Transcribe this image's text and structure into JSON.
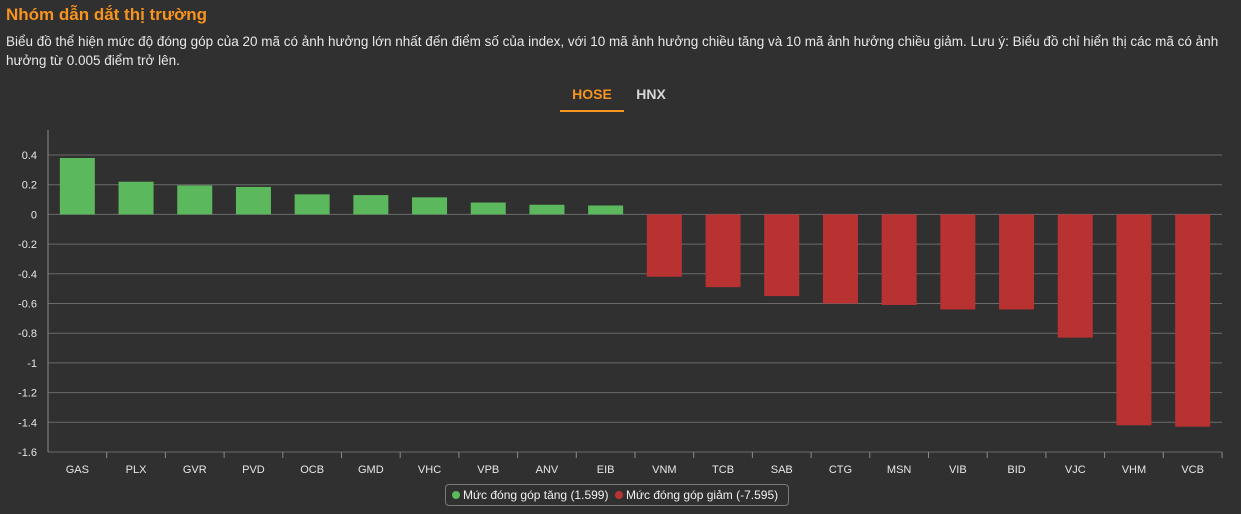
{
  "header": {
    "title": "Nhóm dẫn dắt thị trường",
    "description": "Biểu đồ thể hiện mức độ đóng góp của 20 mã có ảnh hưởng lớn nhất đến điểm số của index, với 10 mã ảnh hưởng chiều tăng và 10 mã ảnh hưởng chiều giảm. Lưu ý: Biểu đồ chỉ hiển thị các mã có ảnh hưởng từ 0.005 điểm trở lên."
  },
  "tabs": [
    {
      "label": "HOSE",
      "active": true
    },
    {
      "label": "HNX",
      "active": false
    }
  ],
  "colors": {
    "accent": "#f7931e",
    "increase": "#5cb85c",
    "decrease": "#b83232",
    "grid": "#6a6a6a"
  },
  "chart_data": {
    "type": "bar",
    "categories": [
      "GAS",
      "PLX",
      "GVR",
      "PVD",
      "OCB",
      "GMD",
      "VHC",
      "VPB",
      "ANV",
      "EIB",
      "VNM",
      "TCB",
      "SAB",
      "CTG",
      "MSN",
      "VIB",
      "BID",
      "VJC",
      "VHM",
      "VCB"
    ],
    "values": [
      0.38,
      0.22,
      0.195,
      0.185,
      0.135,
      0.13,
      0.115,
      0.08,
      0.065,
      0.06,
      -0.42,
      -0.49,
      -0.55,
      -0.6,
      -0.61,
      -0.64,
      -0.64,
      -0.83,
      -1.42,
      -1.43
    ],
    "ylim": [
      -1.6,
      0.5
    ],
    "yticks": [
      0.4,
      0.2,
      0,
      -0.2,
      -0.4,
      -0.6,
      -0.8,
      -1,
      -1.2,
      -1.4,
      -1.6
    ],
    "ytick_labels": [
      "0.4",
      "0.2",
      "0",
      "-0.2",
      "-0.4",
      "-0.6",
      "-0.8",
      "-1",
      "-1.2",
      "-1.4",
      "-1.6"
    ],
    "grid": true,
    "legend_position": "bottom-center",
    "legend": [
      {
        "label": "Mức đóng góp tăng (1.599)",
        "color": "#5cb85c"
      },
      {
        "label": "Mức đóng góp giảm (-7.595)",
        "color": "#b83232"
      }
    ]
  }
}
